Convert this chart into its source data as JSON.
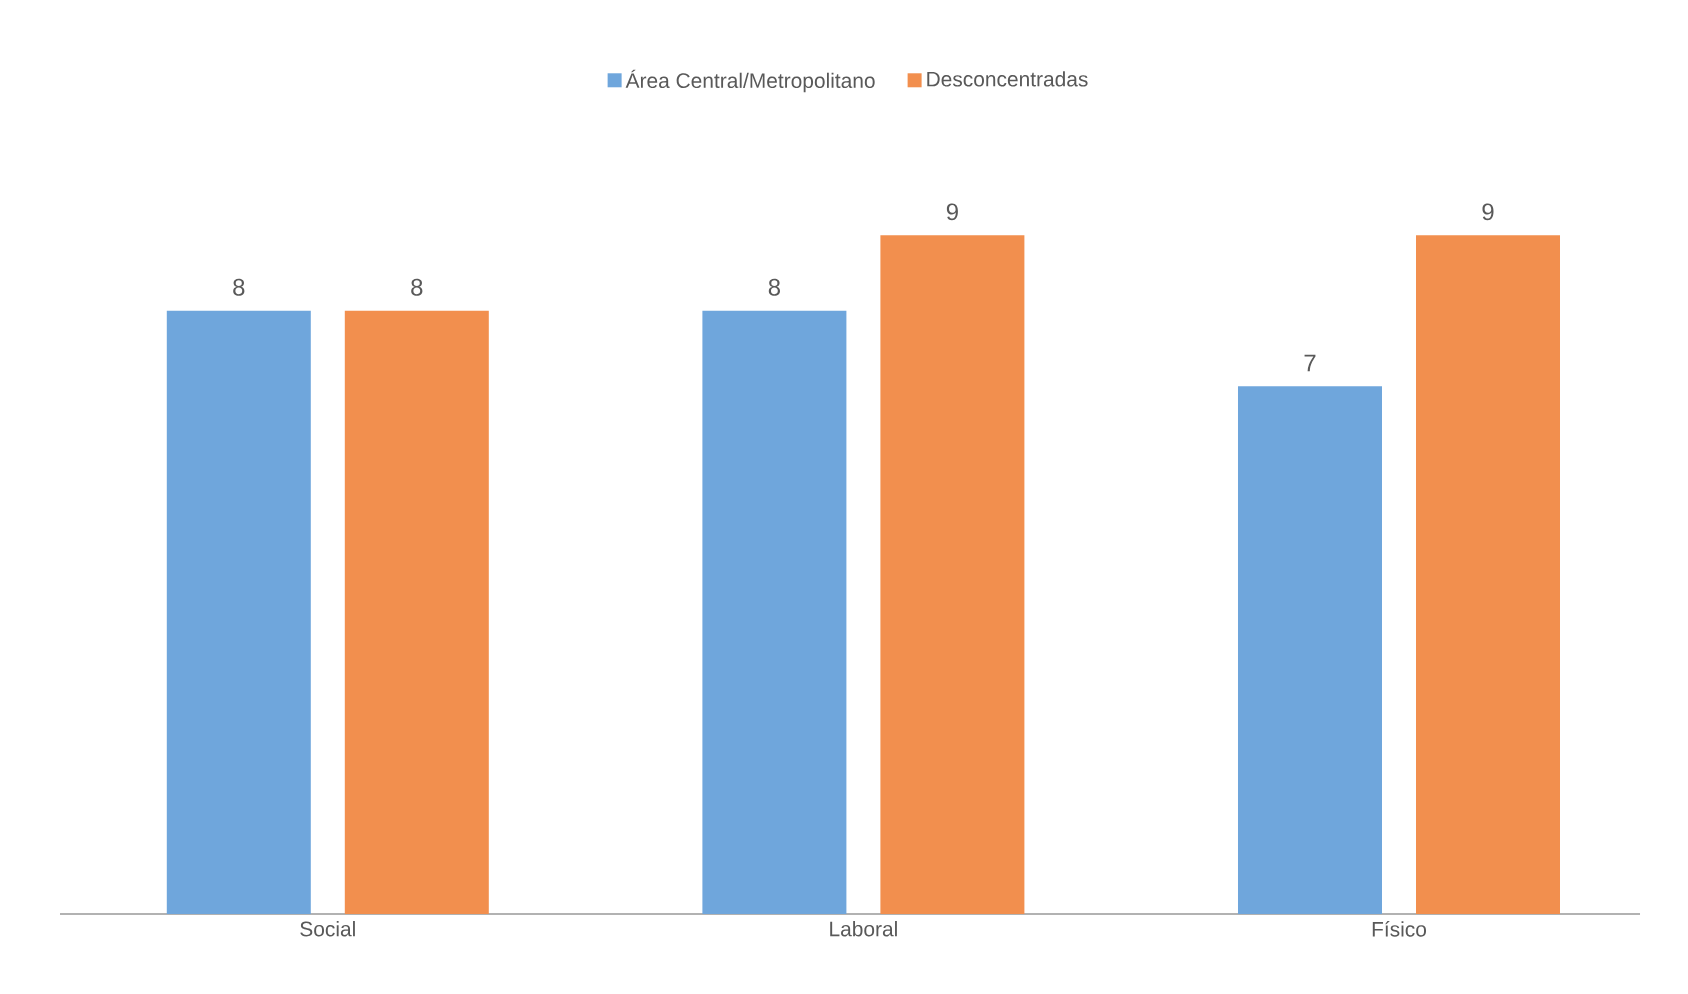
{
  "chart_data": {
    "type": "bar",
    "categories": [
      "Social",
      "Laboral",
      "Físico"
    ],
    "series": [
      {
        "name": "Área Central/Metropolitano",
        "color": "#6fa6dc",
        "values": [
          8,
          8,
          7
        ]
      },
      {
        "name": "Desconcentradas",
        "color": "#f28f4e",
        "values": [
          8,
          9,
          9
        ]
      }
    ],
    "tick_labels": "x",
    "data_labels": true,
    "legend": "top"
  }
}
